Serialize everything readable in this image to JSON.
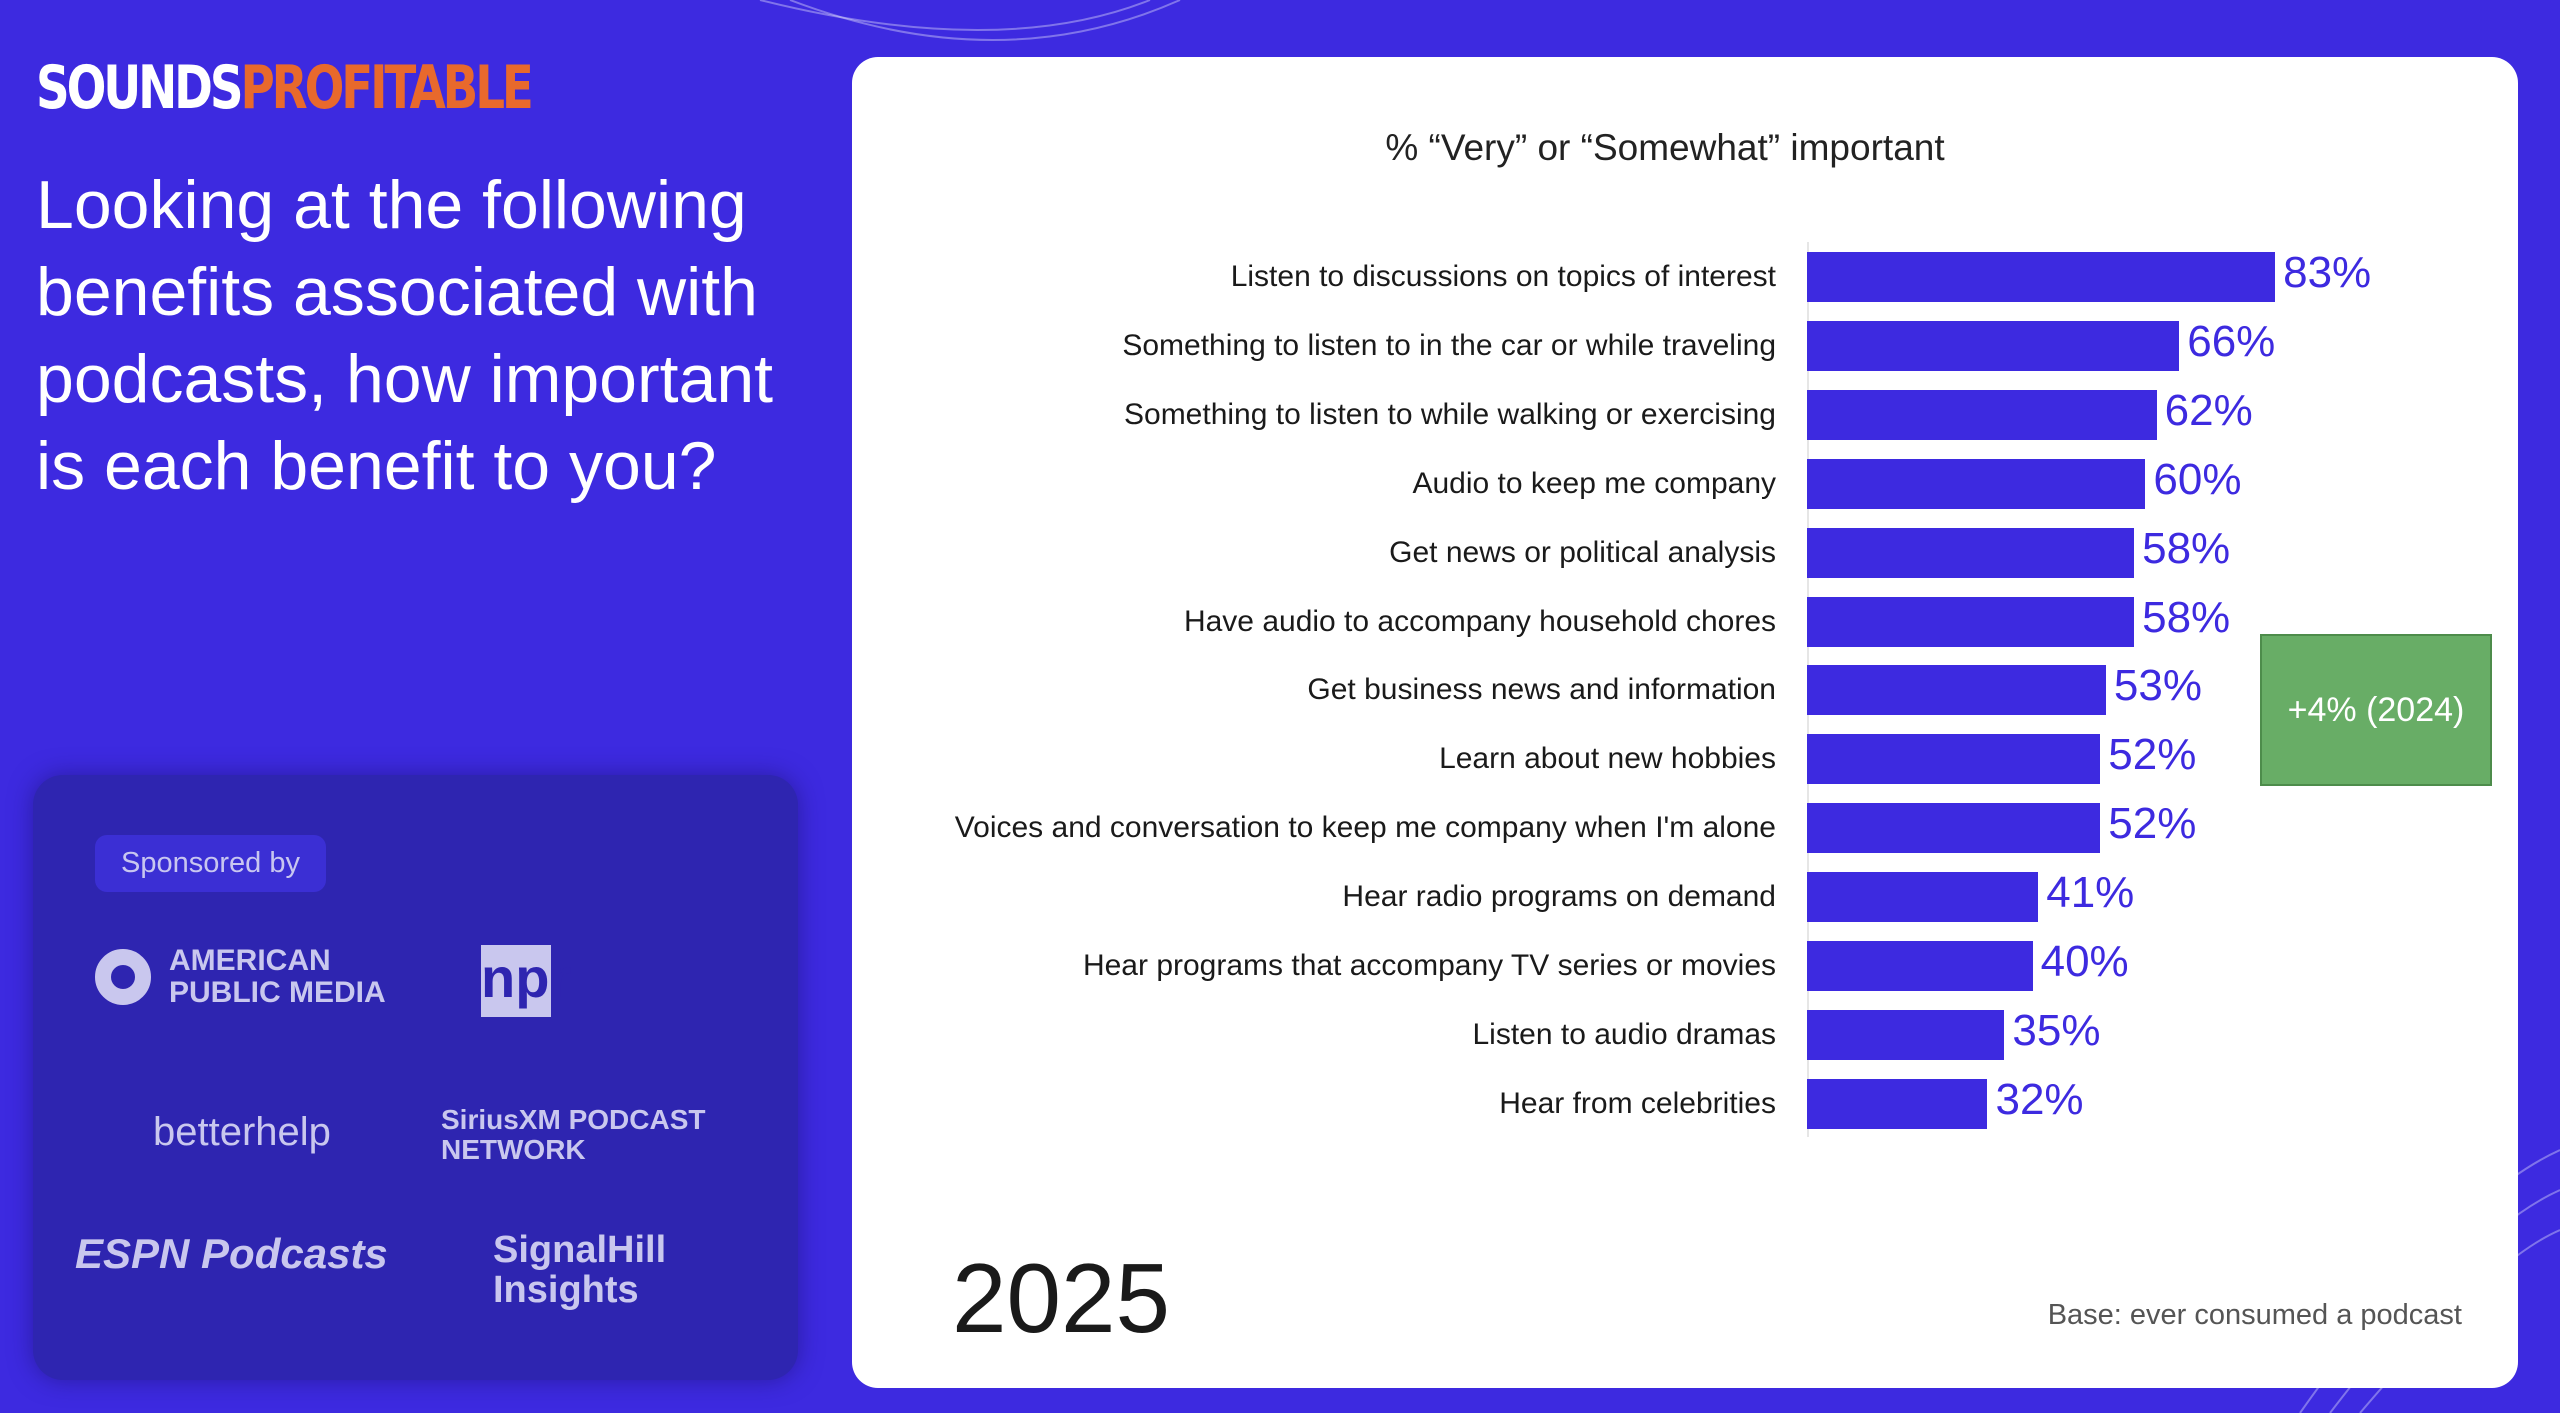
{
  "brand": {
    "part1": "SOUNDS",
    "part2": "PROFITABLE"
  },
  "question": "Looking at the following benefits associated with podcasts, how important is each benefit to you?",
  "sponsors": {
    "label": "Sponsored by",
    "logos": [
      "AMERICAN PUBLIC MEDIA",
      "npr",
      "betterhelp",
      "SiriusXM PODCAST NETWORK",
      "ESPN Podcasts",
      "SignalHill Insights"
    ]
  },
  "chart_data": {
    "type": "bar",
    "title": "% “Very” or “Somewhat” important",
    "categories": [
      "Listen to discussions on topics of interest",
      "Something to listen to in the car or while traveling",
      "Something to listen to while walking or exercising",
      "Audio to keep me company",
      "Get news or political analysis",
      "Have audio to accompany household chores",
      "Get business news and information",
      "Learn about new hobbies",
      "Voices and conversation to keep me company when I'm alone",
      "Hear radio programs on demand",
      "Hear programs that accompany TV series or movies",
      "Listen to audio dramas",
      "Hear from celebrities"
    ],
    "values": [
      83,
      66,
      62,
      60,
      58,
      58,
      53,
      52,
      52,
      41,
      40,
      35,
      32
    ],
    "value_labels": [
      "83%",
      "66%",
      "62%",
      "60%",
      "58%",
      "58%",
      "53%",
      "52%",
      "52%",
      "41%",
      "40%",
      "35%",
      "32%"
    ],
    "annotation": {
      "text": "+4% (2024)",
      "category_index": 4,
      "color": "#68ad66"
    },
    "bar_color": "#3d2ae0",
    "xlim": [
      0,
      100
    ]
  },
  "year": "2025",
  "base_note": "Base: ever consumed a podcast"
}
